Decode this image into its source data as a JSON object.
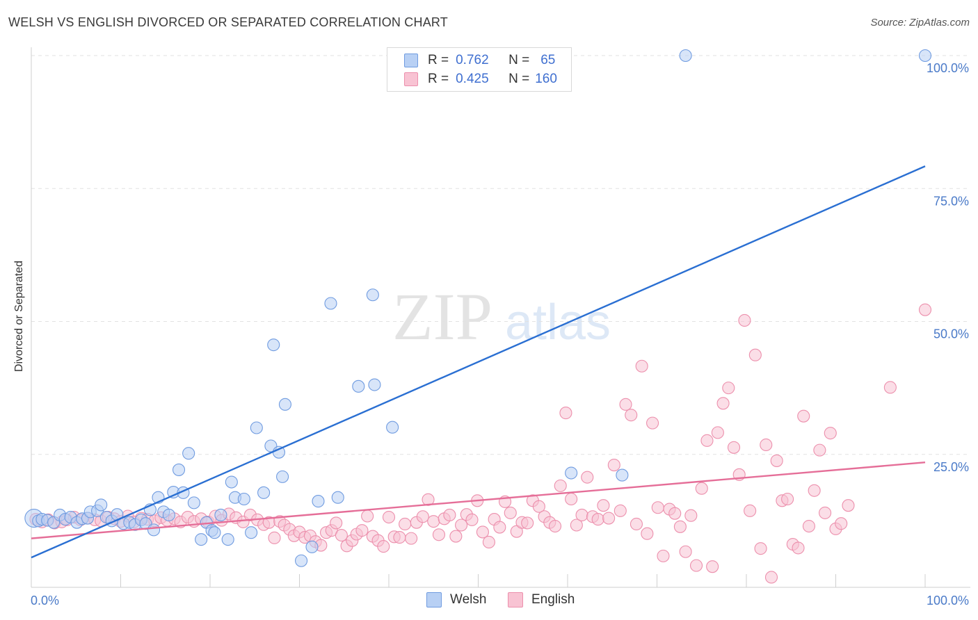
{
  "header": {
    "title": "WELSH VS ENGLISH DIVORCED OR SEPARATED CORRELATION CHART",
    "source": "Source: ZipAtlas.com"
  },
  "watermark": {
    "zip": "ZIP",
    "atlas": "atlas"
  },
  "legend": {
    "welsh": {
      "r_label": "R =",
      "r_value": "0.762",
      "n_label": "N =",
      "n_value": "65"
    },
    "english": {
      "r_label": "R =",
      "r_value": "0.425",
      "n_label": "N =",
      "n_value": "160"
    }
  },
  "colors": {
    "welsh_fill": "#b8d0f4",
    "welsh_stroke": "#6f9be0",
    "welsh_line": "#2a6fd2",
    "english_fill": "#f8c3d3",
    "english_stroke": "#ec8fac",
    "english_line": "#e56e98",
    "tick_text": "#4a7ac8",
    "grid": "#e2e2e2"
  },
  "chart_data": {
    "type": "scatter",
    "title": "WELSH VS ENGLISH DIVORCED OR SEPARATED CORRELATION CHART",
    "xlabel": "",
    "ylabel": "Divorced or Separated",
    "xlim": [
      0,
      100
    ],
    "ylim": [
      0,
      100
    ],
    "x_tick_labels": [
      "0.0%",
      "100.0%"
    ],
    "y_ticks": [
      25,
      50,
      75,
      100
    ],
    "y_tick_labels": [
      "25.0%",
      "50.0%",
      "75.0%",
      "100.0%"
    ],
    "legend_labels": [
      "Welsh",
      "English"
    ],
    "series": [
      {
        "name": "Welsh",
        "r": 0.762,
        "n": 65,
        "trend": {
          "x": [
            0,
            100
          ],
          "y": [
            5.6,
            79.2
          ]
        },
        "points": [
          [
            0.3,
            13
          ],
          [
            0.8,
            12.5
          ],
          [
            1.2,
            12.8
          ],
          [
            1.8,
            12.6
          ],
          [
            2.5,
            12.2
          ],
          [
            3.2,
            13.6
          ],
          [
            3.8,
            12.8
          ],
          [
            4.4,
            13.2
          ],
          [
            5.1,
            12.2
          ],
          [
            5.7,
            12.9
          ],
          [
            6.3,
            13
          ],
          [
            6.6,
            14.2
          ],
          [
            7.4,
            14.4
          ],
          [
            7.8,
            15.5
          ],
          [
            8.4,
            13.2
          ],
          [
            9,
            12.5
          ],
          [
            9.6,
            13.7
          ],
          [
            10.3,
            12
          ],
          [
            11,
            12.2
          ],
          [
            11.6,
            11.8
          ],
          [
            12.3,
            12.7
          ],
          [
            12.8,
            12
          ],
          [
            13.3,
            14.6
          ],
          [
            13.7,
            10.8
          ],
          [
            14.2,
            16.9
          ],
          [
            14.8,
            14.2
          ],
          [
            15.4,
            13.6
          ],
          [
            15.9,
            17.9
          ],
          [
            16.5,
            22.1
          ],
          [
            17,
            17.8
          ],
          [
            17.6,
            25.2
          ],
          [
            18.2,
            15.9
          ],
          [
            19,
            9
          ],
          [
            19.6,
            12.2
          ],
          [
            20.2,
            10.7
          ],
          [
            20.5,
            10.3
          ],
          [
            21.2,
            13.6
          ],
          [
            22,
            9
          ],
          [
            22.4,
            19.8
          ],
          [
            22.8,
            16.9
          ],
          [
            23.8,
            16.6
          ],
          [
            24.6,
            10.3
          ],
          [
            25.2,
            30
          ],
          [
            26,
            17.8
          ],
          [
            26.8,
            26.6
          ],
          [
            27.1,
            45.6
          ],
          [
            27.7,
            25.4
          ],
          [
            28.1,
            20.8
          ],
          [
            28.4,
            34.4
          ],
          [
            30.2,
            5
          ],
          [
            31.4,
            7.6
          ],
          [
            32.1,
            16.2
          ],
          [
            33.5,
            53.4
          ],
          [
            34.3,
            16.9
          ],
          [
            36.6,
            37.8
          ],
          [
            38.2,
            55
          ],
          [
            38.4,
            38.1
          ],
          [
            40.4,
            30.1
          ],
          [
            60.4,
            21.5
          ],
          [
            66.1,
            21.1
          ],
          [
            73.2,
            100
          ],
          [
            100,
            100
          ]
        ]
      },
      {
        "name": "English",
        "r": 0.425,
        "n": 160,
        "trend": {
          "x": [
            0,
            100
          ],
          "y": [
            9.2,
            23.5
          ]
        },
        "points": [
          [
            0.5,
            12.8
          ],
          [
            1.2,
            12.3
          ],
          [
            1.9,
            12.7
          ],
          [
            2.6,
            12.1
          ],
          [
            3.4,
            12.3
          ],
          [
            4,
            12.7
          ],
          [
            4.8,
            13.2
          ],
          [
            5.5,
            12.7
          ],
          [
            6.3,
            13
          ],
          [
            7.1,
            12.7
          ],
          [
            7.8,
            12.5
          ],
          [
            8.6,
            13.2
          ],
          [
            9.3,
            12.9
          ],
          [
            10,
            12.4
          ],
          [
            10.8,
            13.4
          ],
          [
            11.5,
            12.3
          ],
          [
            12.3,
            13
          ],
          [
            13,
            12.8
          ],
          [
            13.8,
            12.5
          ],
          [
            14.5,
            13.1
          ],
          [
            15.2,
            12.6
          ],
          [
            16,
            12.9
          ],
          [
            16.7,
            12.3
          ],
          [
            17.5,
            13.2
          ],
          [
            18.2,
            12.4
          ],
          [
            19,
            12.9
          ],
          [
            19.8,
            12.3
          ],
          [
            20.6,
            13.4
          ],
          [
            21.3,
            12.6
          ],
          [
            22.1,
            13.8
          ],
          [
            22.9,
            13.1
          ],
          [
            23.7,
            12.3
          ],
          [
            24.5,
            13.6
          ],
          [
            25.3,
            12.7
          ],
          [
            26,
            11.8
          ],
          [
            26.6,
            12.2
          ],
          [
            27.2,
            9.3
          ],
          [
            27.8,
            12.4
          ],
          [
            28.3,
            11.7
          ],
          [
            28.9,
            10.9
          ],
          [
            29.4,
            9.7
          ],
          [
            30,
            10.4
          ],
          [
            30.6,
            9.4
          ],
          [
            31.2,
            9.7
          ],
          [
            31.8,
            8.6
          ],
          [
            32.4,
            7.9
          ],
          [
            33,
            10.3
          ],
          [
            33.6,
            10.7
          ],
          [
            34.1,
            12.1
          ],
          [
            34.7,
            9.8
          ],
          [
            35.3,
            7.8
          ],
          [
            35.9,
            8.8
          ],
          [
            36.4,
            10
          ],
          [
            37,
            10.7
          ],
          [
            37.6,
            13.4
          ],
          [
            38.2,
            9.6
          ],
          [
            38.8,
            8.8
          ],
          [
            39.4,
            7.7
          ],
          [
            40,
            13.2
          ],
          [
            40.6,
            9.5
          ],
          [
            41.2,
            9.4
          ],
          [
            41.8,
            11.9
          ],
          [
            42.5,
            9.2
          ],
          [
            43.1,
            12.2
          ],
          [
            43.8,
            13.3
          ],
          [
            44.4,
            16.5
          ],
          [
            45,
            12.4
          ],
          [
            45.6,
            9.9
          ],
          [
            46.2,
            12.9
          ],
          [
            46.8,
            13.6
          ],
          [
            47.5,
            9.6
          ],
          [
            48.1,
            11.7
          ],
          [
            48.7,
            13.7
          ],
          [
            49.3,
            12.7
          ],
          [
            49.9,
            16.3
          ],
          [
            50.5,
            10.4
          ],
          [
            51.2,
            8.5
          ],
          [
            51.8,
            12.8
          ],
          [
            52.4,
            11.3
          ],
          [
            53,
            16.1
          ],
          [
            53.6,
            14
          ],
          [
            54.3,
            10.5
          ],
          [
            54.9,
            12.2
          ],
          [
            55.5,
            12.1
          ],
          [
            56.1,
            16.3
          ],
          [
            56.8,
            15.2
          ],
          [
            57.4,
            13.3
          ],
          [
            58,
            12.2
          ],
          [
            58.6,
            11.5
          ],
          [
            59.2,
            19.1
          ],
          [
            59.8,
            32.8
          ],
          [
            60.4,
            16.6
          ],
          [
            61,
            11.7
          ],
          [
            61.6,
            13.6
          ],
          [
            62.2,
            20.7
          ],
          [
            62.8,
            13.3
          ],
          [
            63.4,
            12.8
          ],
          [
            64,
            15.4
          ],
          [
            64.6,
            13
          ],
          [
            65.2,
            23
          ],
          [
            65.9,
            14.4
          ],
          [
            66.5,
            34.4
          ],
          [
            67.1,
            32.4
          ],
          [
            67.7,
            11.9
          ],
          [
            68.3,
            41.6
          ],
          [
            68.9,
            10.1
          ],
          [
            69.5,
            30.9
          ],
          [
            70.1,
            15
          ],
          [
            70.7,
            5.9
          ],
          [
            71.4,
            14.7
          ],
          [
            72,
            13.9
          ],
          [
            72.6,
            11.4
          ],
          [
            73.2,
            6.7
          ],
          [
            73.8,
            13.5
          ],
          [
            74.4,
            4.1
          ],
          [
            75,
            18.6
          ],
          [
            75.6,
            27.6
          ],
          [
            76.2,
            3.9
          ],
          [
            76.8,
            29.1
          ],
          [
            77.4,
            34.6
          ],
          [
            78,
            37.5
          ],
          [
            78.6,
            26.3
          ],
          [
            79.2,
            21.2
          ],
          [
            79.8,
            50.2
          ],
          [
            80.4,
            14.4
          ],
          [
            81,
            43.7
          ],
          [
            81.6,
            7.3
          ],
          [
            82.2,
            26.8
          ],
          [
            82.8,
            1.9
          ],
          [
            83.4,
            23.8
          ],
          [
            84,
            16.3
          ],
          [
            84.6,
            16.6
          ],
          [
            85.2,
            8.1
          ],
          [
            85.8,
            7.4
          ],
          [
            86.4,
            32.2
          ],
          [
            87,
            11.5
          ],
          [
            87.6,
            18.2
          ],
          [
            88.2,
            25.8
          ],
          [
            88.8,
            14
          ],
          [
            89.4,
            29
          ],
          [
            90,
            11
          ],
          [
            90.6,
            12
          ],
          [
            91.4,
            15.4
          ],
          [
            96.1,
            37.6
          ],
          [
            100,
            52.2
          ]
        ]
      }
    ]
  }
}
